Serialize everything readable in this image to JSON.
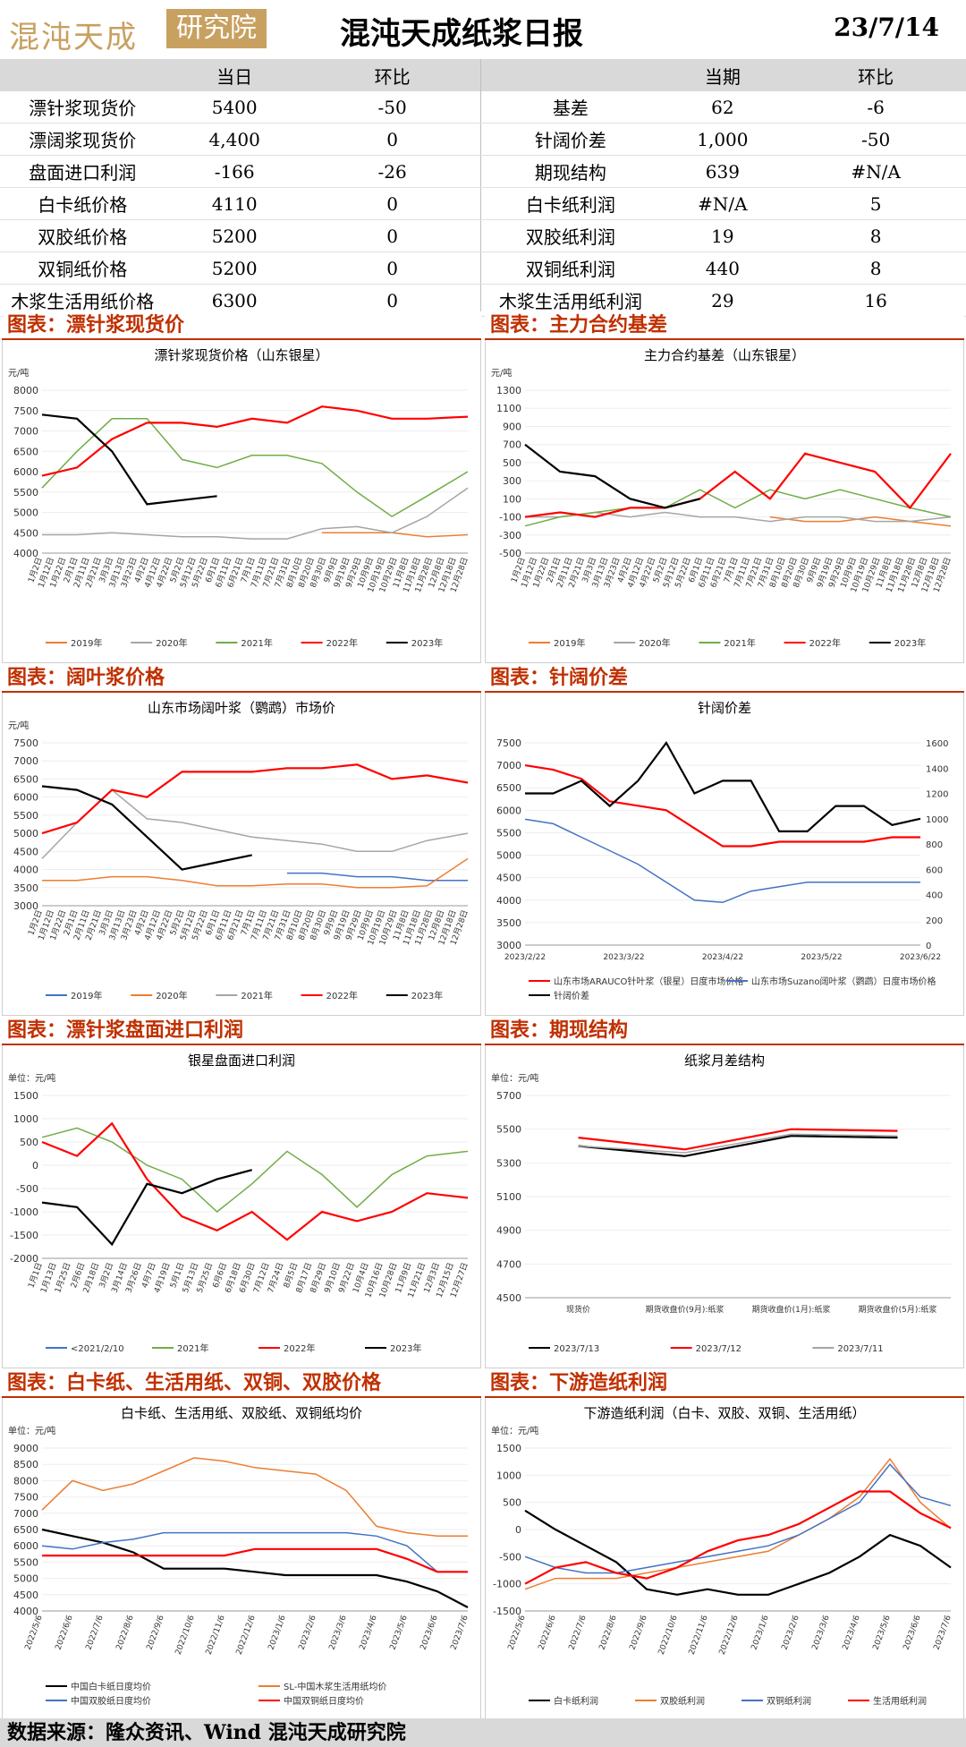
{
  "header": {
    "logo_text": "混沌天成",
    "logo_box": "研究院",
    "title": "混沌天成纸浆日报",
    "date": "23/7/14"
  },
  "summary": {
    "left_headers": [
      "",
      "当日",
      "环比"
    ],
    "right_headers": [
      "",
      "当期",
      "环比"
    ],
    "left_rows": [
      [
        "漂针浆现货价",
        "5400",
        "-50"
      ],
      [
        "漂阔浆现货价",
        "4,400",
        "0"
      ],
      [
        "盘面进口利润",
        "-166",
        "-26"
      ],
      [
        "白卡纸价格",
        "4110",
        "0"
      ],
      [
        "双胶纸价格",
        "5200",
        "0"
      ],
      [
        "双铜纸价格",
        "5200",
        "0"
      ],
      [
        "木浆生活用纸价格",
        "6300",
        "0"
      ]
    ],
    "right_rows": [
      [
        "基差",
        "62",
        "-6"
      ],
      [
        "针阔价差",
        "1,000",
        "-50"
      ],
      [
        "期现结构",
        "639",
        "#N/A"
      ],
      [
        "白卡纸利润",
        "#N/A",
        "5"
      ],
      [
        "双胶纸利润",
        "19",
        "8"
      ],
      [
        "双铜纸利润",
        "440",
        "8"
      ],
      [
        "木浆生活用纸利润",
        "29",
        "16"
      ]
    ]
  },
  "colors": {
    "y2019": "#ed7d31",
    "y2020": "#a5a5a5",
    "y2021": "#70ad47",
    "y2022": "#ff0000",
    "y2023": "#000000",
    "blue": "#4472c4",
    "accent": "#c03000"
  },
  "panels": [
    {
      "heading": "图表：漂针浆现货价"
    },
    {
      "heading": "图表：主力合约基差"
    },
    {
      "heading": "图表：阔叶浆价格"
    },
    {
      "heading": "图表：针阔价差"
    },
    {
      "heading": "图表：漂针浆盘面进口利润"
    },
    {
      "heading": "图表：期现结构"
    },
    {
      "heading": "图表：白卡纸、生活用纸、双铜、双胶价格"
    },
    {
      "heading": "图表：下游造纸利润"
    }
  ],
  "chart_data": [
    {
      "type": "line",
      "title": "漂针浆现货价格（山东银星）",
      "ylabel": "元/吨",
      "ylim": [
        4000,
        8000
      ],
      "yticks": [
        4000,
        4500,
        5000,
        5500,
        6000,
        6500,
        7000,
        7500,
        8000
      ],
      "xticks": [
        "1月2日",
        "1月12日",
        "1月22日",
        "2月1日",
        "2月11日",
        "2月21日",
        "3月3日",
        "3月13日",
        "3月23日",
        "4月2日",
        "4月12日",
        "4月22日",
        "5月2日",
        "5月12日",
        "5月22日",
        "6月1日",
        "6月11日",
        "6月21日",
        "7月1日",
        "7月11日",
        "7月21日",
        "7月31日",
        "8月10日",
        "8月20日",
        "8月30日",
        "9月9日",
        "9月19日",
        "9月29日",
        "10月9日",
        "10月19日",
        "10月29日",
        "11月8日",
        "11月18日",
        "11月28日",
        "12月8日",
        "12月18日",
        "12月28日"
      ],
      "x": [
        0,
        30,
        60,
        90,
        120,
        150,
        180,
        210,
        240,
        270,
        300,
        330,
        365
      ],
      "series": [
        {
          "name": "2019年",
          "values": [
            null,
            null,
            null,
            null,
            null,
            null,
            null,
            null,
            4500,
            4500,
            4500,
            4400,
            4450
          ]
        },
        {
          "name": "2020年",
          "values": [
            4450,
            4450,
            4500,
            4450,
            4400,
            4400,
            4350,
            4350,
            4600,
            4650,
            4500,
            4900,
            5600
          ]
        },
        {
          "name": "2021年",
          "values": [
            5600,
            6500,
            7300,
            7300,
            6300,
            6100,
            6400,
            6400,
            6200,
            5500,
            4900,
            5400,
            6000
          ]
        },
        {
          "name": "2022年",
          "values": [
            5900,
            6100,
            6800,
            7200,
            7200,
            7100,
            7300,
            7200,
            7600,
            7500,
            7300,
            7300,
            7350
          ]
        },
        {
          "name": "2023年",
          "values": [
            7400,
            7300,
            6500,
            5200,
            5300,
            5400,
            null,
            null,
            null,
            null,
            null,
            null,
            null
          ]
        }
      ]
    },
    {
      "type": "line",
      "title": "主力合约基差（山东银星）",
      "ylabel": "元/吨",
      "ylim": [
        -500,
        1300
      ],
      "yticks": [
        -500,
        -300,
        -100,
        100,
        300,
        500,
        700,
        900,
        1100,
        1300
      ],
      "xticks": [
        "1月2日",
        "1月12日",
        "1月22日",
        "2月1日",
        "2月11日",
        "2月21日",
        "3月3日",
        "3月13日",
        "3月23日",
        "4月2日",
        "4月12日",
        "4月22日",
        "5月2日",
        "5月12日",
        "5月22日",
        "6月1日",
        "6月11日",
        "6月21日",
        "7月1日",
        "7月11日",
        "7月21日",
        "7月31日",
        "8月10日",
        "8月20日",
        "8月30日",
        "9月9日",
        "9月19日",
        "9月29日",
        "10月9日",
        "10月19日",
        "10月29日",
        "11月8日",
        "11月18日",
        "11月28日",
        "12月8日",
        "12月18日",
        "12月28日"
      ],
      "x": [
        0,
        30,
        60,
        90,
        120,
        150,
        180,
        210,
        240,
        270,
        300,
        330,
        365
      ],
      "series": [
        {
          "name": "2019年",
          "values": [
            null,
            null,
            null,
            null,
            null,
            null,
            null,
            -100,
            -150,
            -150,
            -100,
            -150,
            -200
          ]
        },
        {
          "name": "2020年",
          "values": [
            -100,
            -100,
            -50,
            -100,
            -50,
            -100,
            -100,
            -150,
            -100,
            -100,
            -150,
            -150,
            -100
          ]
        },
        {
          "name": "2021年",
          "values": [
            -200,
            -100,
            -50,
            0,
            0,
            200,
            0,
            200,
            100,
            200,
            100,
            0,
            -100
          ]
        },
        {
          "name": "2022年",
          "values": [
            -100,
            -50,
            -100,
            0,
            0,
            100,
            400,
            100,
            600,
            500,
            400,
            0,
            600
          ]
        },
        {
          "name": "2023年",
          "values": [
            700,
            400,
            350,
            100,
            0,
            100,
            null,
            null,
            null,
            null,
            null,
            null,
            null
          ]
        }
      ]
    },
    {
      "type": "line",
      "title": "山东市场阔叶浆（鹦鹉）市场价",
      "ylabel": "元/吨",
      "ylim": [
        3000,
        7500
      ],
      "yticks": [
        3000,
        3500,
        4000,
        4500,
        5000,
        5500,
        6000,
        6500,
        7000,
        7500
      ],
      "xticks": [
        "1月2日",
        "1月12日",
        "1月22日",
        "2月1日",
        "2月11日",
        "2月21日",
        "3月3日",
        "3月13日",
        "3月23日",
        "4月2日",
        "4月12日",
        "4月22日",
        "5月2日",
        "5月12日",
        "5月22日",
        "6月1日",
        "6月11日",
        "6月21日",
        "7月1日",
        "7月11日",
        "7月21日",
        "7月31日",
        "8月10日",
        "8月20日",
        "8月30日",
        "9月9日",
        "9月19日",
        "9月29日",
        "10月9日",
        "10月19日",
        "10月29日",
        "11月8日",
        "11月18日",
        "11月28日",
        "12月8日",
        "12月18日",
        "12月28日"
      ],
      "x": [
        0,
        30,
        60,
        90,
        120,
        150,
        180,
        210,
        240,
        270,
        300,
        330,
        365
      ],
      "series": [
        {
          "name": "2019年",
          "values": [
            null,
            null,
            null,
            null,
            null,
            null,
            null,
            3900,
            3900,
            3800,
            3800,
            3700,
            3700
          ]
        },
        {
          "name": "2020年",
          "values": [
            3700,
            3700,
            3800,
            3800,
            3700,
            3550,
            3550,
            3600,
            3600,
            3500,
            3500,
            3550,
            4300
          ]
        },
        {
          "name": "2021年",
          "values": [
            4300,
            5300,
            6200,
            5400,
            5300,
            5100,
            4900,
            4800,
            4700,
            4500,
            4500,
            4800,
            5000
          ]
        },
        {
          "name": "2022年",
          "values": [
            5000,
            5300,
            6200,
            6000,
            6700,
            6700,
            6700,
            6800,
            6800,
            6900,
            6500,
            6600,
            6400
          ]
        },
        {
          "name": "2023年",
          "values": [
            6300,
            6200,
            5800,
            4900,
            4000,
            4200,
            4400,
            null,
            null,
            null,
            null,
            null,
            null
          ]
        }
      ]
    },
    {
      "type": "line",
      "title": "针阔价差",
      "ylim": [
        3000,
        7500
      ],
      "yticks": [
        3000,
        3500,
        4000,
        4500,
        5000,
        5500,
        6000,
        6500,
        7000,
        7500
      ],
      "y2lim": [
        0,
        1600
      ],
      "y2ticks": [
        0,
        200,
        400,
        600,
        800,
        1000,
        1200,
        1400,
        1600
      ],
      "xticks": [
        "2023/2/22",
        "2023/3/22",
        "2023/4/22",
        "2023/5/22",
        "2023/6/22"
      ],
      "x": [
        0,
        10,
        20,
        30,
        40,
        50,
        60,
        70,
        80,
        90,
        100,
        110,
        120,
        130,
        140
      ],
      "series": [
        {
          "name": "山东市场ARAUCO针叶浆（银星）日度市场价格",
          "values": [
            7000,
            6900,
            6700,
            6200,
            6100,
            6000,
            5600,
            5200,
            5200,
            5300,
            5300,
            5300,
            5300,
            5400,
            5400
          ]
        },
        {
          "name": "山东市场Suzano阔叶浆（鹦鹉）日度市场价格",
          "values": [
            5800,
            5700,
            5400,
            5100,
            4800,
            4400,
            4000,
            3950,
            4200,
            4300,
            4400,
            4400,
            4400,
            4400,
            4400
          ]
        },
        {
          "name": "针阔价差",
          "axis": "right",
          "values": [
            1200,
            1200,
            1300,
            1100,
            1300,
            1600,
            1200,
            1300,
            1300,
            900,
            900,
            1100,
            1100,
            950,
            1000
          ]
        }
      ]
    },
    {
      "type": "line",
      "title": "银星盘面进口利润",
      "ylabel": "单位：元/吨",
      "ylim": [
        -2000,
        1500
      ],
      "yticks": [
        -2000,
        -1500,
        -1000,
        -500,
        0,
        500,
        1000,
        1500
      ],
      "xticks": [
        "1月1日",
        "1月13日",
        "1月25日",
        "2月6日",
        "2月18日",
        "3月2日",
        "3月14日",
        "3月26日",
        "4月7日",
        "4月19日",
        "5月1日",
        "5月13日",
        "5月25日",
        "6月6日",
        "6月18日",
        "6月30日",
        "7月12日",
        "7月24日",
        "8月5日",
        "8月17日",
        "8月29日",
        "9月10日",
        "9月22日",
        "10月4日",
        "10月16日",
        "10月28日",
        "11月9日",
        "11月21日",
        "12月3日",
        "12月15日",
        "12月27日"
      ],
      "x": [
        0,
        30,
        60,
        90,
        120,
        150,
        180,
        210,
        240,
        270,
        300,
        330,
        365
      ],
      "series": [
        {
          "name": "<2021/2/10",
          "values": [
            null,
            null,
            null,
            null,
            null,
            null,
            null,
            null,
            null,
            null,
            null,
            null,
            null
          ]
        },
        {
          "name": "2021年",
          "values": [
            600,
            800,
            500,
            0,
            -300,
            -1000,
            -400,
            300,
            -200,
            -900,
            -200,
            200,
            300
          ]
        },
        {
          "name": "2022年",
          "values": [
            500,
            200,
            900,
            -300,
            -1100,
            -1400,
            -1000,
            -1600,
            -1000,
            -1200,
            -1000,
            -600,
            -700
          ]
        },
        {
          "name": "2023年",
          "values": [
            -800,
            -900,
            -1700,
            -400,
            -600,
            -300,
            -100,
            null,
            null,
            null,
            null,
            null,
            null
          ]
        }
      ]
    },
    {
      "type": "line",
      "title": "纸浆月差结构",
      "ylabel": "单位：元/吨",
      "ylim": [
        4500,
        5700
      ],
      "yticks": [
        4500,
        4700,
        4900,
        5100,
        5300,
        5500,
        5700
      ],
      "categories": [
        "现货价",
        "期货收盘价(9月):纸浆",
        "期货收盘价(1月):纸浆",
        "期货收盘价(5月):纸浆"
      ],
      "series": [
        {
          "name": "2023/7/13",
          "values": [
            5400,
            5340,
            5460,
            5450
          ]
        },
        {
          "name": "2023/7/12",
          "values": [
            5450,
            5380,
            5500,
            5490
          ]
        },
        {
          "name": "2023/7/11",
          "values": [
            5400,
            5360,
            5470,
            5460
          ]
        }
      ]
    },
    {
      "type": "line",
      "title": "白卡纸、生活用纸、双胶纸、双铜纸均价",
      "ylabel": "单位：元/吨",
      "ylim": [
        4000,
        9000
      ],
      "yticks": [
        4000,
        4500,
        5000,
        5500,
        6000,
        6500,
        7000,
        7500,
        8000,
        8500,
        9000
      ],
      "xticks": [
        "2022/5/6",
        "2022/6/6",
        "2022/7/6",
        "2022/8/6",
        "2022/9/6",
        "2022/10/6",
        "2022/11/6",
        "2022/12/6",
        "2023/1/6",
        "2023/2/6",
        "2023/3/6",
        "2023/4/6",
        "2023/5/6",
        "2023/6/6",
        "2023/7/6"
      ],
      "x": [
        0,
        1,
        2,
        3,
        4,
        5,
        6,
        7,
        8,
        9,
        10,
        11,
        12,
        13,
        14
      ],
      "series": [
        {
          "name": "中国白卡纸日度均价",
          "values": [
            6500,
            6300,
            6100,
            5800,
            5300,
            5300,
            5300,
            5200,
            5100,
            5100,
            5100,
            5100,
            4900,
            4600,
            4110
          ]
        },
        {
          "name": "SL-中国木浆生活用纸均价",
          "values": [
            7100,
            8000,
            7700,
            7900,
            8300,
            8700,
            8600,
            8400,
            8300,
            8200,
            7700,
            6600,
            6400,
            6300,
            6300
          ]
        },
        {
          "name": "中国双胶纸日度均价",
          "values": [
            6000,
            5900,
            6100,
            6200,
            6400,
            6400,
            6400,
            6400,
            6400,
            6400,
            6400,
            6300,
            6000,
            5200,
            5200
          ]
        },
        {
          "name": "中国双铜纸日度均价",
          "values": [
            5700,
            5700,
            5700,
            5700,
            5700,
            5700,
            5700,
            5900,
            5900,
            5900,
            5900,
            5900,
            5600,
            5200,
            5200
          ]
        }
      ]
    },
    {
      "type": "line",
      "title": "下游造纸利润（白卡、双胶、双铜、生活用纸）",
      "ylabel": "单位：元/吨",
      "ylim": [
        -1500,
        1500
      ],
      "yticks": [
        -1500,
        -1000,
        -500,
        0,
        500,
        1000,
        1500
      ],
      "xticks": [
        "2022/5/6",
        "2022/6/6",
        "2022/7/6",
        "2022/8/6",
        "2022/9/6",
        "2022/10/6",
        "2022/11/6",
        "2022/12/6",
        "2023/1/6",
        "2023/2/6",
        "2023/3/6",
        "2023/4/6",
        "2023/5/6",
        "2023/6/6",
        "2023/7/6"
      ],
      "x": [
        0,
        1,
        2,
        3,
        4,
        5,
        6,
        7,
        8,
        9,
        10,
        11,
        12,
        13,
        14
      ],
      "series": [
        {
          "name": "白卡纸利润",
          "values": [
            350,
            0,
            -300,
            -600,
            -1100,
            -1200,
            -1100,
            -1200,
            -1200,
            -1000,
            -800,
            -500,
            -100,
            -300,
            -700
          ]
        },
        {
          "name": "双胶纸利润",
          "values": [
            -1100,
            -900,
            -900,
            -900,
            -800,
            -700,
            -600,
            -500,
            -400,
            -100,
            200,
            600,
            1300,
            500,
            19
          ]
        },
        {
          "name": "双铜纸利润",
          "values": [
            -500,
            -700,
            -800,
            -800,
            -700,
            -600,
            -500,
            -400,
            -300,
            -100,
            200,
            500,
            1200,
            600,
            440
          ]
        },
        {
          "name": "生活用纸利润",
          "values": [
            -1000,
            -700,
            -600,
            -800,
            -900,
            -700,
            -400,
            -200,
            -100,
            100,
            400,
            700,
            700,
            300,
            29
          ]
        }
      ]
    }
  ],
  "footer": {
    "text": "数据来源：隆众资讯、Wind   混沌天成研究院"
  }
}
